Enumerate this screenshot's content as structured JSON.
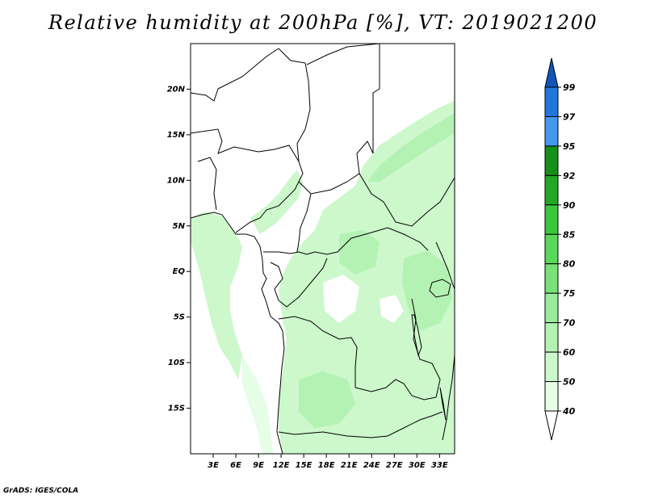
{
  "title": "Relative humidity at 200hPa [%], VT: 2019021200",
  "credit": "GrADS: IGES/COLA",
  "map": {
    "lat_labels": [
      "20N",
      "15N",
      "10N",
      "5N",
      "EQ",
      "5S",
      "10S",
      "15S"
    ],
    "lon_labels": [
      "3E",
      "6E",
      "9E",
      "12E",
      "15E",
      "18E",
      "21E",
      "24E",
      "27E",
      "30E",
      "33E"
    ],
    "lat_values": [
      20,
      15,
      10,
      5,
      0,
      -5,
      -10,
      -15
    ],
    "lon_values": [
      3,
      6,
      9,
      12,
      15,
      18,
      21,
      24,
      27,
      30,
      33
    ],
    "lon_range": [
      0,
      35
    ],
    "lat_range": [
      -20,
      25
    ]
  },
  "colorbar": {
    "levels": [
      "40",
      "50",
      "60",
      "70",
      "75",
      "80",
      "85",
      "90",
      "92",
      "95",
      "97",
      "99"
    ],
    "colors": [
      "#ffffff",
      "#e6fde6",
      "#ccf8cc",
      "#b4f2b4",
      "#9aeb9a",
      "#78e278",
      "#5ad85a",
      "#3cc83c",
      "#22a822",
      "#16901a",
      "#4499ee",
      "#2277dd",
      "#1155bb"
    ]
  }
}
